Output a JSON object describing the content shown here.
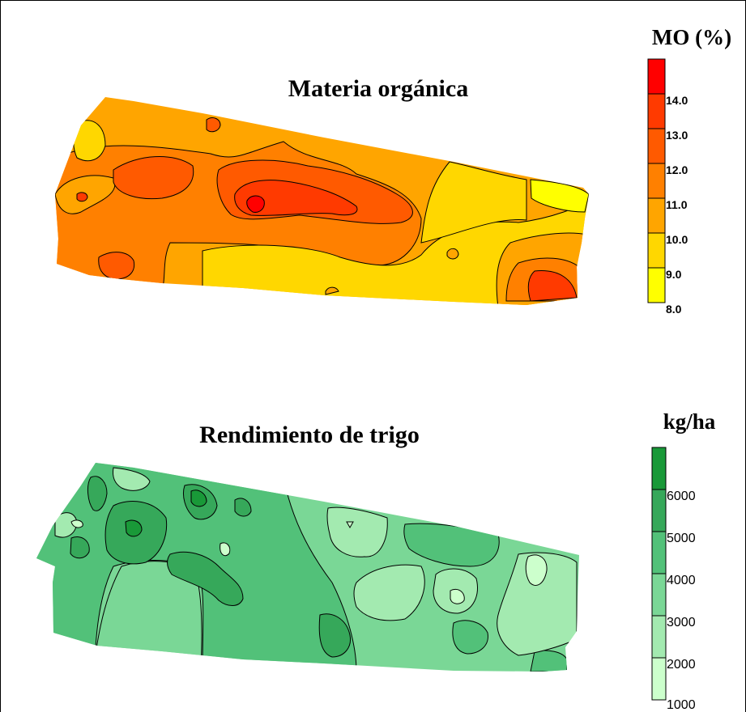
{
  "map_top": {
    "title": "Materia orgánica",
    "legend_title": "MO (%)",
    "legend_ticks": [
      "14.0",
      "13.0",
      "12.0",
      "11.0",
      "10.0",
      "9.0",
      "8.0"
    ],
    "classes": [
      "8.0–9.0",
      "9.0–10.0",
      "10.0–11.0",
      "11.0–12.0",
      "12.0–13.0",
      "13.0–14.0",
      "14.0+"
    ],
    "colors": {
      "c8": "#ffff00",
      "c9": "#ffd700",
      "c10": "#ffa500",
      "c11": "#ff8000",
      "c12": "#ff5a00",
      "c13": "#ff3a00",
      "c14": "#ff0000"
    }
  },
  "map_bottom": {
    "title": "Rendimiento de trigo",
    "legend_title": "kg/ha",
    "legend_ticks": [
      "6000",
      "5000",
      "4000",
      "3000",
      "2000",
      "1000"
    ],
    "classes": [
      "1000–2000",
      "2000–3000",
      "3000–4000",
      "4000–5000",
      "5000–6000",
      "6000+"
    ],
    "colors": {
      "g1": "#ccffcc",
      "g2": "#a3eab0",
      "g3": "#7ad796",
      "g4": "#52c179",
      "g5": "#36a85a",
      "g6": "#199938"
    }
  }
}
